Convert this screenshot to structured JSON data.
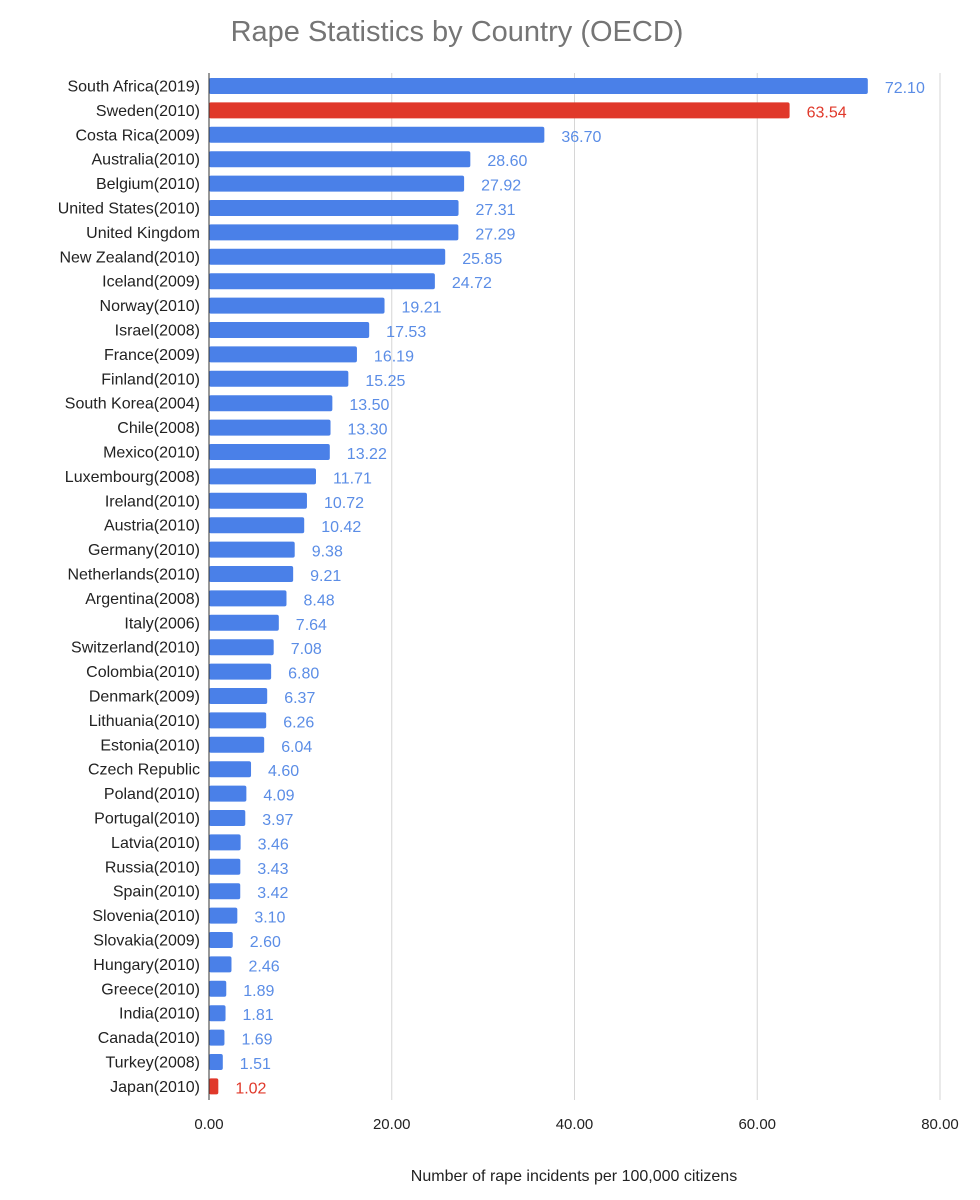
{
  "chart_data": {
    "type": "bar",
    "orientation": "horizontal",
    "title": "Rape Statistics by Country (OECD)",
    "xlabel": "Number of rape incidents per 100,000 citizens",
    "ylabel": "",
    "xlim": [
      0,
      80
    ],
    "ticks": [
      "0.00",
      "20.00",
      "40.00",
      "60.00",
      "80.00"
    ],
    "tick_values": [
      0,
      20,
      40,
      60,
      80
    ],
    "grid": true,
    "colors": {
      "default": "#4a80e8",
      "highlight": "#e0382a",
      "default_label": "#5b8de6",
      "highlight_label": "#e0382a"
    },
    "categories": [
      "South Africa(2019)",
      "Sweden(2010)",
      "Costa Rica(2009)",
      "Australia(2010)",
      "Belgium(2010)",
      "United States(2010)",
      "United Kingdom",
      "New Zealand(2010)",
      "Iceland(2009)",
      "Norway(2010)",
      "Israel(2008)",
      "France(2009)",
      "Finland(2010)",
      "South Korea(2004)",
      "Chile(2008)",
      "Mexico(2010)",
      "Luxembourg(2008)",
      "Ireland(2010)",
      "Austria(2010)",
      "Germany(2010)",
      "Netherlands(2010)",
      "Argentina(2008)",
      "Italy(2006)",
      "Switzerland(2010)",
      "Colombia(2010)",
      "Denmark(2009)",
      "Lithuania(2010)",
      "Estonia(2010)",
      "Czech Republic",
      "Poland(2010)",
      "Portugal(2010)",
      "Latvia(2010)",
      "Russia(2010)",
      "Spain(2010)",
      "Slovenia(2010)",
      "Slovakia(2009)",
      "Hungary(2010)",
      "Greece(2010)",
      "India(2010)",
      "Canada(2010)",
      "Turkey(2008)",
      "Japan(2010)"
    ],
    "values": [
      72.1,
      63.54,
      36.7,
      28.6,
      27.92,
      27.31,
      27.29,
      25.85,
      24.72,
      19.21,
      17.53,
      16.19,
      15.25,
      13.5,
      13.3,
      13.22,
      11.71,
      10.72,
      10.42,
      9.38,
      9.21,
      8.48,
      7.64,
      7.08,
      6.8,
      6.37,
      6.26,
      6.04,
      4.6,
      4.09,
      3.97,
      3.46,
      3.43,
      3.42,
      3.1,
      2.6,
      2.46,
      1.89,
      1.81,
      1.69,
      1.51,
      1.02
    ],
    "value_labels": [
      "72.10",
      "63.54",
      "36.70",
      "28.60",
      "27.92",
      "27.31",
      "27.29",
      "25.85",
      "24.72",
      "19.21",
      "17.53",
      "16.19",
      "15.25",
      "13.50",
      "13.30",
      "13.22",
      "11.71",
      "10.72",
      "10.42",
      "9.38",
      "9.21",
      "8.48",
      "7.64",
      "7.08",
      "6.80",
      "6.37",
      "6.26",
      "6.04",
      "4.60",
      "4.09",
      "3.97",
      "3.46",
      "3.43",
      "3.42",
      "3.10",
      "2.60",
      "2.46",
      "1.89",
      "1.81",
      "1.69",
      "1.51",
      "1.02"
    ],
    "highlighted": [
      "Sweden(2010)",
      "Japan(2010)"
    ]
  }
}
